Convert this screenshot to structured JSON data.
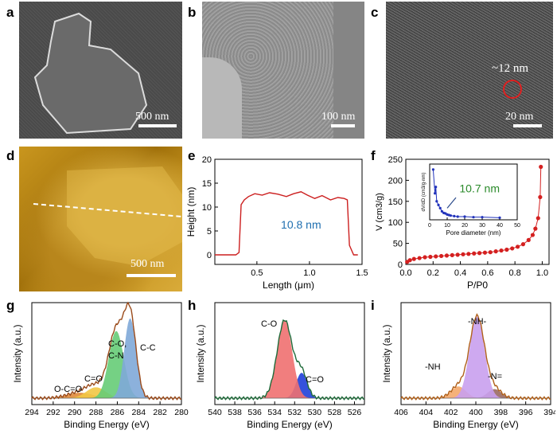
{
  "panels": {
    "a": {
      "label": "a",
      "scale": "500 nm"
    },
    "b": {
      "label": "b",
      "scale": "100 nm"
    },
    "c": {
      "label": "c",
      "scale": "20 nm",
      "pore": "~12 nm"
    },
    "d": {
      "label": "d",
      "scale": "500 nm"
    },
    "e": {
      "label": "e",
      "annotation": "10.8 nm"
    },
    "f": {
      "label": "f",
      "annotation": "10.7 nm"
    },
    "g": {
      "label": "g"
    },
    "h": {
      "label": "h"
    },
    "i": {
      "label": "i"
    }
  },
  "chart_data": [
    {
      "id": "e",
      "type": "line",
      "xlabel": "Length (μm)",
      "ylabel": "Height (nm)",
      "xlim": [
        0.1,
        1.5
      ],
      "ylim": [
        -2,
        20
      ],
      "xticks": [
        "0.5",
        "1.0",
        "1.5"
      ],
      "yticks": [
        "0",
        "5",
        "10",
        "15",
        "20"
      ],
      "annotation": "10.8 nm",
      "color": "#cc1f1f",
      "x": [
        0.1,
        0.3,
        0.33,
        0.35,
        0.38,
        0.42,
        0.48,
        0.55,
        0.62,
        0.7,
        0.78,
        0.85,
        0.92,
        0.98,
        1.05,
        1.12,
        1.2,
        1.27,
        1.33,
        1.36,
        1.38,
        1.42,
        1.46
      ],
      "y": [
        0,
        0,
        0.5,
        10.5,
        11.5,
        12.2,
        12.8,
        12.5,
        13,
        12.7,
        12.2,
        12.8,
        13.2,
        12.5,
        11.8,
        12.4,
        11.5,
        12,
        11.8,
        11.5,
        2,
        0,
        0
      ]
    },
    {
      "id": "f",
      "type": "scatter",
      "xlabel": "P/P0",
      "ylabel": "V (cm3/g)",
      "xlim": [
        0,
        1.05
      ],
      "ylim": [
        0,
        250
      ],
      "xticks": [
        "0.0",
        "0.2",
        "0.4",
        "0.6",
        "0.8",
        "1.0"
      ],
      "yticks": [
        "0",
        "50",
        "100",
        "150",
        "200",
        "250"
      ],
      "series": [
        {
          "color": "#d42020",
          "x": [
            0.01,
            0.03,
            0.06,
            0.1,
            0.14,
            0.18,
            0.22,
            0.26,
            0.3,
            0.34,
            0.38,
            0.42,
            0.46,
            0.5,
            0.54,
            0.58,
            0.62,
            0.66,
            0.7,
            0.74,
            0.78,
            0.82,
            0.86,
            0.9,
            0.93,
            0.95,
            0.97,
            0.985,
            0.99
          ],
          "y": [
            6,
            10,
            13,
            15,
            17,
            18,
            19,
            20,
            21,
            22,
            23,
            24,
            25,
            26,
            27,
            28,
            29,
            31,
            33,
            35,
            38,
            42,
            48,
            58,
            70,
            85,
            110,
            160,
            232
          ]
        }
      ],
      "inset": {
        "xlabel": "Pore diameter (nm)",
        "ylabel": "dV/dD (cm3/g·nm)",
        "xlim": [
          0,
          50
        ],
        "xticks": [
          "0",
          "10",
          "20",
          "30",
          "40",
          "50"
        ],
        "annotation": "10.7 nm",
        "color": "#2233bb",
        "x": [
          2,
          3,
          3.5,
          4,
          5,
          6,
          7,
          8,
          9,
          10,
          11,
          12,
          14,
          16,
          20,
          25,
          30,
          40
        ],
        "y": [
          0.95,
          0.5,
          0.62,
          0.35,
          0.28,
          0.22,
          0.16,
          0.13,
          0.12,
          0.1,
          0.09,
          0.08,
          0.07,
          0.06,
          0.06,
          0.05,
          0.05,
          0.04
        ]
      }
    },
    {
      "id": "g",
      "type": "area",
      "xlabel": "Binding Energy (eV)",
      "ylabel": "Intensity (a.u.)",
      "xlim": [
        294,
        280
      ],
      "xticks": [
        "294",
        "292",
        "290",
        "288",
        "286",
        "284",
        "282",
        "280"
      ],
      "peaks": [
        {
          "name": "C-C",
          "center": 284.8,
          "height": 0.88,
          "width": 0.55,
          "color": "#7fa8d8"
        },
        {
          "name": "C-O, C-N",
          "center": 286.1,
          "height": 0.74,
          "width": 0.7,
          "color": "#66cc77"
        },
        {
          "name": "C=O",
          "center": 288.0,
          "height": 0.12,
          "width": 0.9,
          "color": "#f2c744"
        },
        {
          "name": "O-C=O",
          "center": 289.5,
          "height": 0.06,
          "width": 1.2,
          "color": "#e08a3a"
        }
      ],
      "labels": [
        "C-C",
        "C-O,",
        "C-N",
        "C=O",
        "O-C=O"
      ],
      "envelope_color": "#9a4a1a"
    },
    {
      "id": "h",
      "type": "area",
      "xlabel": "Binding Energy (eV)",
      "ylabel": "Intensity (a.u.)",
      "xlim": [
        540,
        525
      ],
      "xticks": [
        "540",
        "538",
        "536",
        "534",
        "532",
        "530",
        "528",
        "526"
      ],
      "peaks": [
        {
          "name": "C-O",
          "center": 533.0,
          "height": 0.86,
          "width": 0.75,
          "color": "#f07070"
        },
        {
          "name": "C=O",
          "center": 531.3,
          "height": 0.28,
          "width": 0.55,
          "color": "#1f3fd8"
        }
      ],
      "labels": [
        "C-O",
        "C=O"
      ],
      "envelope_color": "#1f6b3a"
    },
    {
      "id": "i",
      "type": "area",
      "xlabel": "Binding Energy (eV)",
      "ylabel": "Intensity (a.u.)",
      "xlim": [
        406,
        394
      ],
      "xticks": [
        "406",
        "404",
        "402",
        "400",
        "398",
        "396",
        "394"
      ],
      "peaks": [
        {
          "name": "-NH-",
          "center": 399.9,
          "height": 0.9,
          "width": 0.6,
          "color": "#c9a0ee"
        },
        {
          "name": "-NH2",
          "center": 401.4,
          "height": 0.13,
          "width": 0.6,
          "color": "#f4a86a"
        },
        {
          "name": "-N=",
          "center": 398.5,
          "height": 0.1,
          "width": 0.55,
          "color": "#9a6a60"
        }
      ],
      "labels": [
        "-NH-",
        "-NH",
        "-N="
      ],
      "envelope_color": "#b0601a"
    }
  ]
}
